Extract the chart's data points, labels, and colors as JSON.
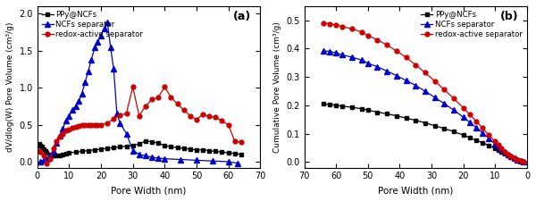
{
  "panel_a": {
    "title": "(a)",
    "xlabel": "Pore Width (nm)",
    "ylabel": "dV/dlog(W) Pore Volume (cm³/g)",
    "xlim": [
      0,
      70
    ],
    "ylim": [
      -0.08,
      2.1
    ],
    "yticks": [
      0.0,
      0.5,
      1.0,
      1.5,
      2.0
    ],
    "xticks": [
      0,
      10,
      20,
      30,
      40,
      50,
      60,
      70
    ],
    "PPy_x": [
      0.5,
      1,
      1.5,
      2,
      2.5,
      3,
      4,
      5,
      6,
      7,
      8,
      9,
      10,
      12,
      14,
      16,
      18,
      20,
      22,
      24,
      26,
      28,
      30,
      32,
      34,
      36,
      38,
      40,
      42,
      44,
      46,
      48,
      50,
      52,
      54,
      56,
      58,
      60,
      62,
      64
    ],
    "PPy_y": [
      0.24,
      0.22,
      0.2,
      0.17,
      0.14,
      0.12,
      0.1,
      0.09,
      0.08,
      0.09,
      0.1,
      0.11,
      0.12,
      0.13,
      0.14,
      0.15,
      0.16,
      0.17,
      0.18,
      0.19,
      0.2,
      0.21,
      0.22,
      0.24,
      0.28,
      0.27,
      0.25,
      0.22,
      0.2,
      0.19,
      0.18,
      0.17,
      0.16,
      0.16,
      0.15,
      0.14,
      0.13,
      0.12,
      0.11,
      0.1
    ],
    "NCFs_x": [
      1,
      2,
      3,
      4,
      5,
      6,
      7,
      8,
      9,
      10,
      11,
      12,
      13,
      14,
      15,
      16,
      17,
      18,
      19,
      20,
      21,
      22,
      23,
      24,
      25,
      26,
      28,
      30,
      32,
      34,
      36,
      38,
      40,
      45,
      50,
      55,
      60,
      63
    ],
    "NCFs_y": [
      0.0,
      0.02,
      0.04,
      0.08,
      0.15,
      0.25,
      0.35,
      0.45,
      0.55,
      0.62,
      0.7,
      0.75,
      0.82,
      0.92,
      1.07,
      1.22,
      1.38,
      1.54,
      1.62,
      1.7,
      1.8,
      1.88,
      1.55,
      1.25,
      0.65,
      0.52,
      0.38,
      0.15,
      0.1,
      0.08,
      0.06,
      0.05,
      0.04,
      0.03,
      0.02,
      0.01,
      0.0,
      -0.02
    ],
    "redox_x": [
      0.5,
      1,
      2,
      3,
      4,
      5,
      6,
      7,
      8,
      9,
      10,
      11,
      12,
      13,
      14,
      15,
      16,
      17,
      18,
      19,
      20,
      22,
      24,
      26,
      28,
      30,
      32,
      34,
      36,
      38,
      40,
      42,
      44,
      46,
      48,
      50,
      52,
      54,
      56,
      58,
      60,
      62,
      64
    ],
    "redox_y": [
      0.14,
      0.13,
      0.08,
      -0.03,
      0.04,
      0.18,
      0.28,
      0.34,
      0.38,
      0.42,
      0.44,
      0.46,
      0.47,
      0.48,
      0.49,
      0.5,
      0.5,
      0.5,
      0.5,
      0.5,
      0.5,
      0.52,
      0.58,
      0.63,
      0.65,
      1.01,
      0.62,
      0.75,
      0.84,
      0.87,
      1.01,
      0.87,
      0.78,
      0.7,
      0.62,
      0.57,
      0.64,
      0.61,
      0.6,
      0.55,
      0.5,
      0.28,
      0.26
    ]
  },
  "panel_b": {
    "title": "(b)",
    "xlabel": "Pore Width (nm)",
    "ylabel": "Cumulative Pore Volume (cm³/g)",
    "xlim": [
      70,
      0
    ],
    "ylim": [
      -0.02,
      0.55
    ],
    "yticks": [
      0.0,
      0.1,
      0.2,
      0.3,
      0.4,
      0.5
    ],
    "xticks": [
      70,
      60,
      50,
      40,
      30,
      20,
      10,
      0
    ],
    "PPy_x": [
      64,
      62,
      60,
      58,
      55,
      52,
      50,
      47,
      44,
      41,
      38,
      35,
      32,
      29,
      26,
      23,
      20,
      18,
      16,
      14,
      12,
      10,
      9,
      8,
      7,
      6,
      5,
      4,
      3,
      2,
      1
    ],
    "PPy_y": [
      0.205,
      0.203,
      0.2,
      0.197,
      0.193,
      0.188,
      0.183,
      0.176,
      0.17,
      0.163,
      0.155,
      0.147,
      0.138,
      0.128,
      0.118,
      0.107,
      0.095,
      0.086,
      0.077,
      0.068,
      0.058,
      0.048,
      0.042,
      0.036,
      0.03,
      0.024,
      0.018,
      0.013,
      0.008,
      0.004,
      0.0
    ],
    "NCFs_x": [
      64,
      62,
      60,
      58,
      55,
      52,
      50,
      47,
      44,
      41,
      38,
      35,
      32,
      29,
      26,
      23,
      20,
      18,
      16,
      14,
      12,
      10,
      9,
      8,
      7,
      6,
      5,
      4,
      3,
      2,
      1
    ],
    "NCFs_y": [
      0.393,
      0.39,
      0.385,
      0.378,
      0.37,
      0.36,
      0.349,
      0.336,
      0.321,
      0.305,
      0.288,
      0.27,
      0.25,
      0.228,
      0.206,
      0.183,
      0.158,
      0.14,
      0.122,
      0.103,
      0.083,
      0.064,
      0.054,
      0.044,
      0.035,
      0.026,
      0.019,
      0.013,
      0.008,
      0.004,
      0.0
    ],
    "redox_x": [
      64,
      62,
      60,
      58,
      55,
      52,
      50,
      47,
      44,
      41,
      38,
      35,
      32,
      29,
      26,
      23,
      20,
      18,
      16,
      14,
      12,
      10,
      9,
      8,
      7,
      6,
      5,
      4,
      3,
      2,
      1
    ],
    "redox_y": [
      0.491,
      0.488,
      0.484,
      0.478,
      0.47,
      0.459,
      0.447,
      0.431,
      0.413,
      0.392,
      0.369,
      0.343,
      0.315,
      0.286,
      0.255,
      0.224,
      0.191,
      0.168,
      0.144,
      0.12,
      0.095,
      0.072,
      0.06,
      0.048,
      0.037,
      0.027,
      0.019,
      0.012,
      0.007,
      0.003,
      0.0
    ]
  },
  "colors": {
    "PPy": "#000000",
    "NCFs": "#0000cc",
    "redox": "#cc0000"
  },
  "legend_labels": [
    "PPy@NCFs",
    "NCFs separator",
    "redox-active separator"
  ],
  "bg_color": "#ffffff"
}
